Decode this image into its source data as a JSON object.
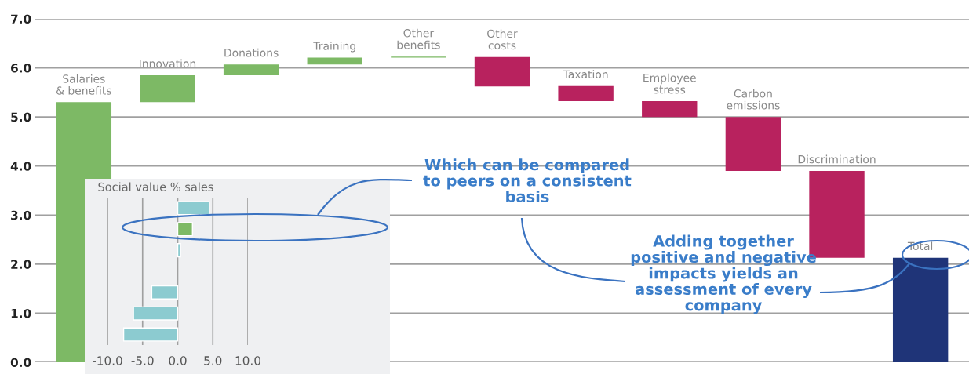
{
  "chart_data": [
    {
      "type": "bar",
      "categories": [
        "Salaries\n& benefits",
        "Innovation",
        "Donations",
        "Training",
        "Other\nbenefits",
        "Other\ncosts",
        "Taxation",
        "Employee\nstress",
        "Carbon\nemissions",
        "Discrimination",
        "Total"
      ],
      "base": [
        0,
        5.3,
        5.85,
        6.07,
        6.21,
        6.22,
        5.63,
        5.32,
        5.0,
        3.9,
        0
      ],
      "values": [
        5.3,
        0.55,
        0.22,
        0.14,
        0.02,
        -0.6,
        -0.31,
        -0.32,
        -1.1,
        -1.77,
        2.13
      ],
      "colors": [
        "#7db965",
        "#7db965",
        "#7db965",
        "#7db965",
        "#7db965",
        "#b8225e",
        "#b8225e",
        "#b8225e",
        "#b8225e",
        "#b8225e",
        "#1f3478"
      ],
      "ylim": [
        0,
        7
      ],
      "yticks": [
        {
          "value": 0,
          "label": "0.0"
        },
        {
          "value": 1,
          "label": "1.0"
        },
        {
          "value": 2,
          "label": "2.0"
        },
        {
          "value": 3,
          "label": "3.0"
        },
        {
          "value": 4,
          "label": "4.0"
        },
        {
          "value": 5,
          "label": "5.0"
        },
        {
          "value": 6,
          "label": "6.0"
        },
        {
          "value": 7,
          "label": "7.0"
        }
      ],
      "grid": "y",
      "annotations": [
        "Which can be compared\nto peers on a consistent\nbasis",
        "Adding together\npositive and negative\nimpacts yields an\nassessment of every\ncompany"
      ]
    },
    {
      "type": "bar",
      "orientation": "horizontal",
      "title": "Social value % sales",
      "categories": [
        null,
        null,
        null,
        null,
        null,
        null,
        null
      ],
      "values": [
        4.5,
        2.1,
        0.4,
        null,
        -3.7,
        -6.3,
        -7.7
      ],
      "colors": [
        "#8ccbd0",
        "#7db965",
        "#8ccbd0",
        "#8ccbd0",
        "#8ccbd0",
        "#8ccbd0",
        "#8ccbd0"
      ],
      "xlim": [
        -10,
        10
      ],
      "xticks": [
        {
          "value": -10,
          "label": "-10.0"
        },
        {
          "value": -5,
          "label": "-5.0"
        },
        {
          "value": 0,
          "label": "0.0"
        },
        {
          "value": 5,
          "label": "5.0"
        },
        {
          "value": 10,
          "label": "10.0"
        }
      ],
      "grid": "x"
    }
  ]
}
